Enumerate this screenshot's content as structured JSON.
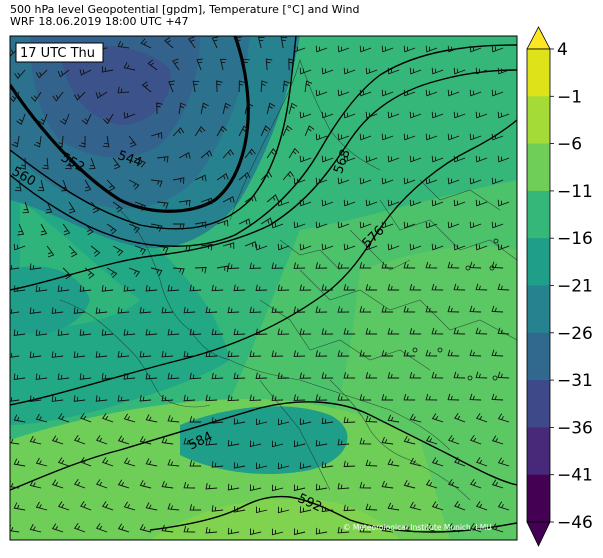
{
  "header": {
    "line1": "500 hPa level Geopotential [gpdm], Temperature [°C] and Wind",
    "line2": "WRF 18.06.2019 18:00 UTC +47"
  },
  "time_label": "17 UTC Thu",
  "copyright": "© Meteorological Institute Munich, LMU",
  "colorbar": {
    "ticks": [
      "4",
      "−1",
      "−6",
      "−11",
      "−16",
      "−21",
      "−26",
      "−31",
      "−36",
      "−41",
      "−46"
    ],
    "colors": [
      "#fde725",
      "#dde318",
      "#a5db36",
      "#6ece58",
      "#35b779",
      "#1f9e89",
      "#26828e",
      "#31688e",
      "#3e4989",
      "#482878",
      "#440154"
    ]
  },
  "contours": [
    {
      "label": "544"
    },
    {
      "label": "552"
    },
    {
      "label": "560"
    },
    {
      "label": "568"
    },
    {
      "label": "576"
    },
    {
      "label": "584"
    },
    {
      "label": "592"
    }
  ],
  "icons": {
    "wind_barb": "wind-barb-icon",
    "city_marker": "city-dot-icon"
  }
}
